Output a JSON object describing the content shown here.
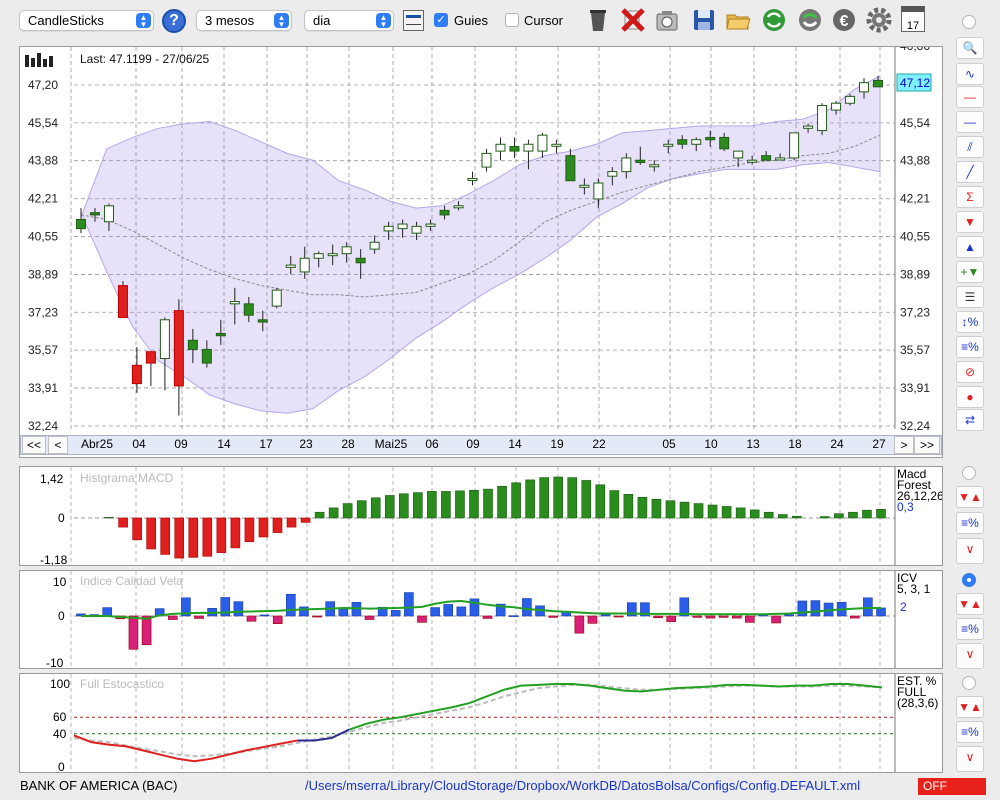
{
  "toolbar": {
    "chart_type": "CandleSticks",
    "help": "?",
    "period": "3 mesos",
    "interval": "dia",
    "guides_label": "Guies",
    "guides_checked": true,
    "cursor_label": "Cursor",
    "cursor_checked": false,
    "icons": [
      "chart-toggle-icon",
      "trash-icon",
      "delete-icon",
      "camera-icon",
      "save-icon",
      "open-folder-icon",
      "refresh-icon",
      "recycle-icon",
      "euro-icon",
      "gear-icon",
      "calendar-icon"
    ],
    "calendar_day": "17"
  },
  "main": {
    "last_label": "Last: 47.1199 - 27/06/25",
    "price_tag": "47,12",
    "y_ticks": [
      "47,20",
      "45,54",
      "43,88",
      "42,21",
      "40,55",
      "38,89",
      "37,23",
      "35,57",
      "33,91",
      "32,24"
    ],
    "y_top_partial": "46,86",
    "x_labels": [
      "Abr25",
      "04",
      "09",
      "14",
      "17",
      "23",
      "28",
      "Mai25",
      "06",
      "09",
      "14",
      "19",
      "22",
      "05",
      "10",
      "13",
      "18",
      "24",
      "27"
    ],
    "nav": {
      "first": "<<",
      "prev": "<",
      "next": ">",
      "last": ">>"
    }
  },
  "macd": {
    "title": "Histgrama MACD",
    "y_ticks": [
      "1,42",
      "0",
      "-1,18"
    ],
    "name": "Macd",
    "subname": "Forest",
    "params": "26,12,26",
    "value": "0,3"
  },
  "icv": {
    "title": "Indice Calidad Vela",
    "y_ticks": [
      "10",
      "0",
      "-10"
    ],
    "name": "ICV",
    "params": "5, 3, 1",
    "value": "2"
  },
  "stoch": {
    "title": "Full Estocastico",
    "y_ticks": [
      "100",
      "60",
      "40",
      "0"
    ],
    "name": "EST. %",
    "subname": "FULL",
    "params": "(28,3,6)"
  },
  "status": {
    "symbol": "BANK OF AMERICA (BAC)",
    "path": "/Users/mserra/Library/CloudStorage/Dropbox/WorkDB/DatosBolsa/Configs/Config.DEFAULT.xml",
    "badge": "OFF"
  },
  "right_toolbar": [
    "zoom-icon",
    "bollinger-icon",
    "hline-red-icon",
    "hline-blue-icon",
    "channel-icon",
    "trendline-icon",
    "sigma-trend-icon",
    "arrow-down-icon",
    "arrow-up-icon",
    "add-arrows-icon",
    "grid-lines-icon",
    "expand-percent-icon",
    "percent-lines-icon",
    "stop-icon",
    "record-icon",
    "swap-icon"
  ],
  "chart_data": {
    "type": "candlestick",
    "ylim": [
      32.24,
      47.2
    ],
    "candles": [
      [
        41.3,
        41.8,
        40.7,
        40.9
      ],
      [
        41.6,
        41.8,
        41.2,
        41.5
      ],
      [
        41.2,
        42.0,
        40.8,
        41.9
      ],
      [
        38.4,
        38.6,
        37.0,
        37.0
      ],
      [
        34.9,
        35.7,
        33.7,
        34.1
      ],
      [
        35.0,
        35.5,
        34.0,
        35.5
      ],
      [
        35.2,
        37.0,
        33.8,
        36.9
      ],
      [
        34.0,
        37.8,
        32.7,
        37.3
      ],
      [
        36.0,
        36.5,
        35.0,
        35.6
      ],
      [
        35.6,
        36.0,
        34.8,
        35.0
      ],
      [
        36.3,
        36.9,
        35.8,
        36.2
      ],
      [
        37.6,
        38.3,
        36.7,
        37.7
      ],
      [
        37.6,
        37.9,
        36.8,
        37.1
      ],
      [
        36.9,
        37.3,
        36.4,
        36.8
      ],
      [
        37.5,
        38.3,
        37.4,
        38.2
      ],
      [
        39.2,
        39.7,
        38.9,
        39.3
      ],
      [
        39.0,
        40.1,
        38.7,
        39.6
      ],
      [
        39.6,
        39.9,
        39.2,
        39.8
      ],
      [
        39.8,
        40.2,
        39.3,
        39.8
      ],
      [
        39.8,
        40.3,
        39.4,
        40.1
      ],
      [
        39.6,
        40.0,
        38.7,
        39.4
      ],
      [
        40.0,
        40.6,
        39.8,
        40.3
      ],
      [
        40.8,
        41.2,
        40.4,
        41.0
      ],
      [
        40.9,
        41.3,
        40.5,
        41.1
      ],
      [
        40.7,
        41.2,
        40.4,
        41.0
      ],
      [
        41.0,
        41.3,
        40.8,
        41.1
      ],
      [
        41.7,
        41.9,
        41.3,
        41.5
      ],
      [
        41.9,
        42.1,
        41.7,
        41.9
      ],
      [
        43.1,
        43.4,
        42.8,
        43.1
      ],
      [
        43.6,
        44.4,
        43.4,
        44.2
      ],
      [
        44.3,
        44.9,
        43.9,
        44.6
      ],
      [
        44.5,
        44.9,
        44.0,
        44.3
      ],
      [
        44.3,
        44.8,
        43.5,
        44.6
      ],
      [
        44.3,
        45.1,
        44.0,
        45.0
      ],
      [
        44.6,
        44.8,
        44.2,
        44.6
      ],
      [
        44.1,
        44.4,
        43.0,
        43.0
      ],
      [
        42.8,
        43.1,
        42.4,
        42.8
      ],
      [
        42.2,
        43.1,
        41.8,
        42.9
      ],
      [
        43.2,
        43.6,
        42.8,
        43.4
      ],
      [
        43.4,
        44.2,
        43.1,
        44.0
      ],
      [
        43.9,
        44.5,
        43.7,
        43.8
      ],
      [
        43.7,
        43.9,
        43.4,
        43.7
      ],
      [
        44.6,
        44.8,
        44.2,
        44.6
      ],
      [
        44.8,
        45.0,
        44.4,
        44.6
      ],
      [
        44.6,
        44.9,
        44.3,
        44.8
      ],
      [
        44.9,
        45.2,
        44.5,
        44.8
      ],
      [
        44.9,
        45.1,
        44.3,
        44.4
      ],
      [
        44.0,
        44.3,
        43.6,
        44.3
      ],
      [
        43.9,
        44.1,
        43.7,
        43.9
      ],
      [
        44.1,
        44.3,
        43.9,
        43.9
      ],
      [
        44.0,
        44.2,
        43.9,
        44.0
      ],
      [
        44.0,
        45.1,
        43.9,
        45.1
      ],
      [
        45.3,
        45.5,
        45.1,
        45.4
      ],
      [
        45.2,
        46.4,
        45.0,
        46.3
      ],
      [
        46.1,
        46.5,
        45.9,
        46.4
      ],
      [
        46.4,
        46.8,
        46.3,
        46.7
      ],
      [
        46.9,
        47.5,
        46.6,
        47.3
      ],
      [
        47.4,
        47.6,
        47.1,
        47.12
      ]
    ],
    "bollinger_upper": [
      41.4,
      44.4,
      44.9,
      45.3,
      45.5,
      45.6,
      45.2,
      44.7,
      44.2,
      43.9,
      43.0,
      42.6,
      42.1,
      41.8,
      41.9,
      42.4,
      43.0,
      43.7,
      44.1,
      44.3,
      44.6,
      45.1,
      45.2,
      45.3,
      45.4,
      45.4,
      45.4,
      45.6,
      45.7,
      46.1,
      47.0,
      47.6
    ],
    "bollinger_lower": [
      41.6,
      39.0,
      36.6,
      35.1,
      34.4,
      33.6,
      33.2,
      32.9,
      32.8,
      33.0,
      33.8,
      34.4,
      35.2,
      36.1,
      36.8,
      37.6,
      38.3,
      38.9,
      39.6,
      40.4,
      41.4,
      42.0,
      42.7,
      43.1,
      43.3,
      43.5,
      43.5,
      43.5,
      43.7,
      43.8,
      43.6,
      43.4
    ],
    "sma": [
      41.5,
      41.3,
      40.8,
      40.2,
      39.6,
      39.1,
      38.7,
      38.4,
      38.2,
      38.0,
      38.0,
      37.9,
      38.0,
      38.1,
      38.5,
      38.9,
      39.5,
      40.3,
      41.2,
      41.7,
      42.1,
      42.5,
      42.8,
      43.1,
      43.4,
      43.6,
      43.8,
      43.9,
      44.1,
      44.2,
      44.5,
      45.0
    ],
    "macd_hist": [
      0,
      0,
      0.02,
      -0.25,
      -0.6,
      -0.85,
      -1.0,
      -1.1,
      -1.08,
      -1.05,
      -0.95,
      -0.82,
      -0.65,
      -0.52,
      -0.4,
      -0.25,
      -0.12,
      0.2,
      0.35,
      0.5,
      0.6,
      0.7,
      0.78,
      0.84,
      0.88,
      0.92,
      0.92,
      0.94,
      0.96,
      1.0,
      1.1,
      1.22,
      1.32,
      1.4,
      1.42,
      1.4,
      1.3,
      1.15,
      0.95,
      0.82,
      0.72,
      0.65,
      0.6,
      0.55,
      0.5,
      0.45,
      0.4,
      0.35,
      0.28,
      0.2,
      0.12,
      0.06,
      0,
      0.05,
      0.15,
      0.2,
      0.27,
      0.3
    ],
    "icv_bars": [
      0.6,
      0.4,
      2.4,
      -0.8,
      -9.5,
      -8.2,
      2.1,
      -1.0,
      5.2,
      -0.7,
      2.2,
      5.3,
      4.1,
      -1.5,
      0.3,
      -2.2,
      6.2,
      2.6,
      -0.3,
      4.1,
      2.3,
      3.9,
      -1.0,
      2.5,
      1.6,
      6.7,
      -1.8,
      2.4,
      3.3,
      2.6,
      4.9,
      -0.7,
      3.4,
      0.1,
      5.0,
      2.9,
      -0.4,
      1.1,
      -4.9,
      -2.1,
      0.4,
      -0.1,
      3.8,
      3.8,
      -0.5,
      -1.6,
      5.2,
      -0.4,
      -0.6,
      -0.4,
      -0.6,
      -1.8,
      0.3,
      -2.0,
      0.4,
      4.3,
      4.4,
      3.7,
      3.9,
      -0.6,
      5.2,
      2.3
    ],
    "icv_line": [
      0,
      0,
      0,
      -0.3,
      -0.5,
      -0.8,
      0.2,
      0.6,
      0.8,
      0.9,
      0.9,
      1.0,
      1.2,
      1.3,
      1.4,
      1.5,
      1.7,
      1.9,
      2.0,
      2.1,
      2.3,
      2.2,
      2.1,
      2.2,
      2.3,
      2.4,
      2.6,
      3.5,
      4.1,
      4.3,
      3.8,
      3.2,
      2.8,
      2.5,
      2.0,
      1.7,
      1.4,
      1.2,
      1.0,
      0.8,
      0.7,
      0.7,
      0.7,
      0.6,
      0.6,
      0.6,
      0.6,
      0.5,
      0.5,
      0.5,
      0.5,
      0.5,
      0.5,
      0.6,
      0.7,
      1.0,
      1.3,
      1.6,
      1.9,
      2.1,
      2.3,
      2.3
    ],
    "stoch_k": [
      38,
      30,
      27,
      25,
      20,
      15,
      10,
      7,
      10,
      15,
      20,
      24,
      28,
      32,
      32,
      35,
      45,
      52,
      57,
      60,
      64,
      68,
      72,
      77,
      85,
      93,
      98,
      99,
      100,
      100,
      98,
      95,
      92,
      91,
      93,
      95,
      96,
      97,
      99,
      99,
      98,
      97,
      98,
      98,
      100,
      100,
      98,
      96
    ],
    "stoch_d": [
      35,
      32,
      30,
      26,
      22,
      19,
      15,
      13,
      14,
      16,
      19,
      22,
      25,
      29,
      33,
      37,
      42,
      48,
      53,
      56,
      60,
      64,
      68,
      72,
      78,
      85,
      90,
      95,
      97,
      99,
      99,
      97,
      95,
      93,
      93,
      94,
      95,
      96,
      97,
      98,
      98,
      97,
      97,
      97,
      98,
      98,
      97,
      96
    ]
  }
}
